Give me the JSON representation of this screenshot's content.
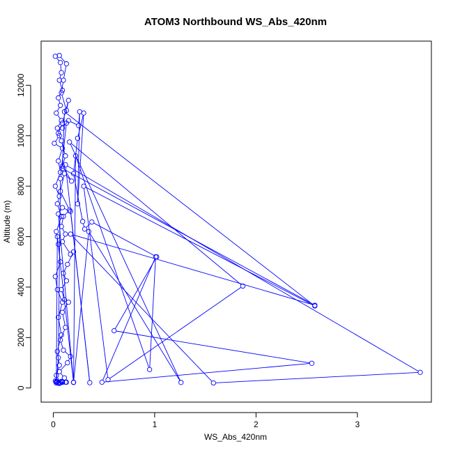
{
  "chart_data": {
    "type": "line",
    "title": "ATOM3 Northbound WS_Abs_420nm",
    "xlabel": "WS_Abs_420nm",
    "ylabel": "Altitude (m)",
    "xlim": [
      -0.12,
      3.73
    ],
    "ylim": [
      -560,
      13750
    ],
    "x_ticks": [
      0,
      1,
      2,
      3
    ],
    "x_tick_labels": [
      "0",
      "1",
      "2",
      "3"
    ],
    "y_ticks": [
      0,
      2000,
      4000,
      6000,
      8000,
      10000,
      12000
    ],
    "y_tick_labels": [
      "0",
      "2000",
      "4000",
      "6000",
      "8000",
      "10000",
      "12000"
    ],
    "grid": false,
    "legend": "none",
    "series_color": "#0000ff",
    "series": [
      {
        "points": [
          [
            0.03,
            240
          ],
          [
            0.05,
            200
          ],
          [
            0.08,
            260
          ],
          [
            0.12,
            230
          ],
          [
            0.06,
            180
          ],
          [
            0.04,
            250
          ],
          [
            0.09,
            220
          ],
          [
            0.05,
            190
          ],
          [
            0.02,
            280
          ],
          [
            0.07,
            210
          ],
          [
            0.03,
            500
          ],
          [
            0.06,
            900
          ],
          [
            0.04,
            1450
          ],
          [
            0.08,
            2100
          ],
          [
            0.05,
            2800
          ],
          [
            0.09,
            3400
          ],
          [
            0.04,
            3900
          ],
          [
            0.02,
            4420
          ],
          [
            0.07,
            5000
          ],
          [
            0.05,
            5700
          ],
          [
            0.03,
            6200
          ],
          [
            0.08,
            6800
          ],
          [
            0.04,
            7300
          ],
          [
            0.06,
            7600
          ],
          [
            0.02,
            8000
          ],
          [
            0.07,
            8550
          ],
          [
            0.05,
            9000
          ],
          [
            0.09,
            9500
          ],
          [
            0.01,
            9700
          ],
          [
            0.06,
            10000
          ],
          [
            0.04,
            10300
          ],
          [
            0.08,
            10600
          ],
          [
            0.03,
            10900
          ],
          [
            0.07,
            11200
          ],
          [
            0.05,
            11500
          ],
          [
            0.09,
            11800
          ],
          [
            0.06,
            12200
          ],
          [
            0.08,
            12500
          ],
          [
            0.07,
            12900
          ],
          [
            0.02,
            13150
          ],
          [
            0.06,
            13180
          ],
          [
            0.13,
            12850
          ],
          [
            0.1,
            12200
          ],
          [
            0.08,
            11700
          ],
          [
            0.13,
            11000
          ],
          [
            0.15,
            11400
          ],
          [
            0.09,
            10500
          ],
          [
            0.05,
            10100
          ],
          [
            0.08,
            9800
          ],
          [
            0.12,
            9200
          ],
          [
            0.09,
            8800
          ],
          [
            0.18,
            8200
          ],
          [
            0.11,
            8500
          ],
          [
            0.07,
            7800
          ],
          [
            0.16,
            7050
          ],
          [
            0.1,
            6800
          ],
          [
            0.08,
            6400
          ],
          [
            0.12,
            6100
          ],
          [
            0.09,
            5800
          ],
          [
            0.17,
            5300
          ],
          [
            0.2,
            5400
          ],
          [
            0.14,
            4900
          ],
          [
            0.1,
            4550
          ],
          [
            0.13,
            4250
          ],
          [
            0.08,
            3900
          ],
          [
            0.11,
            3500
          ],
          [
            0.15,
            3400
          ],
          [
            0.09,
            3000
          ],
          [
            0.12,
            2400
          ],
          [
            0.07,
            1900
          ],
          [
            0.1,
            1500
          ],
          [
            0.17,
            1250
          ],
          [
            0.14,
            1000
          ],
          [
            0.06,
            650
          ],
          [
            0.11,
            400
          ],
          [
            0.09,
            250
          ],
          [
            0.13,
            230
          ],
          [
            0.03,
            200
          ],
          [
            0.05,
            1200
          ],
          [
            0.07,
            8300
          ],
          [
            0.13,
            10500
          ],
          [
            0.09,
            10300
          ],
          [
            0.15,
            10600
          ],
          [
            0.25,
            10400
          ],
          [
            0.26,
            10950
          ],
          [
            0.24,
            7300
          ],
          [
            0.3,
            10900
          ],
          [
            0.24,
            9900
          ],
          [
            0.2,
            8500
          ],
          [
            0.29,
            6600
          ],
          [
            0.31,
            6300
          ],
          [
            0.38,
            6580
          ],
          [
            1.02,
            5200
          ],
          [
            0.6,
            2270
          ],
          [
            2.55,
            980
          ],
          [
            0.48,
            230
          ],
          [
            1.01,
            5200
          ],
          [
            0.95,
            730
          ],
          [
            0.22,
            9200
          ],
          [
            0.2,
            230
          ],
          [
            0.35,
            6200
          ],
          [
            1.26,
            220
          ],
          [
            0.16,
            9750
          ],
          [
            1.87,
            4040
          ],
          [
            0.54,
            330
          ],
          [
            0.3,
            8000
          ],
          [
            2.58,
            3250
          ],
          [
            0.11,
            10950
          ],
          [
            0.09,
            8700
          ],
          [
            2.58,
            3280
          ],
          [
            0.17,
            6100
          ],
          [
            1.58,
            200
          ],
          [
            3.62,
            620
          ],
          [
            0.12,
            8850
          ],
          [
            0.36,
            210
          ],
          [
            0.17,
            7000
          ],
          [
            0.09,
            7150
          ],
          [
            0.05,
            6900
          ],
          [
            0.2,
            220
          ],
          [
            0.04,
            6000
          ],
          [
            0.03,
            260
          ]
        ]
      }
    ]
  }
}
